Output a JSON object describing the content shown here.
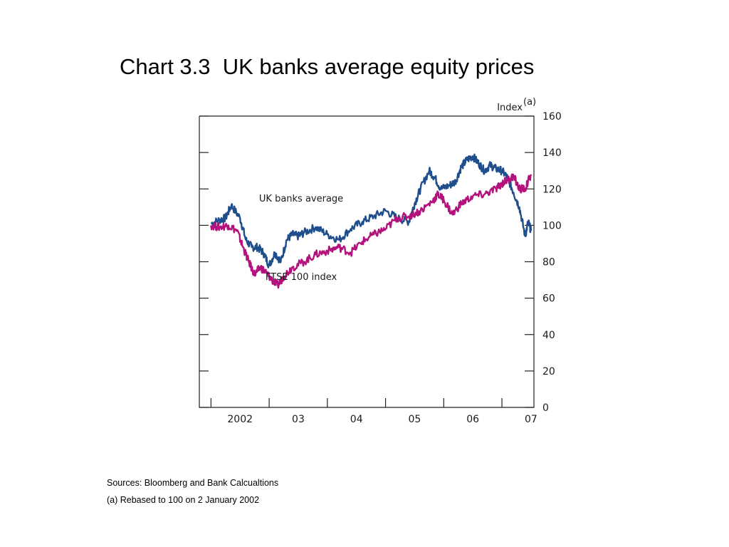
{
  "title": "Chart 3.3  UK banks average equity prices",
  "chart_data": {
    "type": "line",
    "ylabel": "Index",
    "ylabel_superscript": "(a)",
    "ylim": [
      0,
      160
    ],
    "y_ticks": [
      0,
      20,
      40,
      60,
      80,
      100,
      120,
      140,
      160
    ],
    "x_range": [
      2001.8,
      2007.55
    ],
    "x_ticks": [
      {
        "label": "2002",
        "value": 2002
      },
      {
        "label": "03",
        "value": 2003
      },
      {
        "label": "04",
        "value": 2004
      },
      {
        "label": "05",
        "value": 2005
      },
      {
        "label": "06",
        "value": 2006
      },
      {
        "label": "07",
        "value": 2007
      }
    ],
    "series": [
      {
        "name": "UK banks average",
        "color": "#1f4e8c",
        "x": [
          2002.0,
          2002.15,
          2002.25,
          2002.35,
          2002.5,
          2002.6,
          2002.7,
          2002.8,
          2002.9,
          2003.0,
          2003.1,
          2003.2,
          2003.3,
          2003.4,
          2003.5,
          2003.6,
          2003.8,
          2004.0,
          2004.2,
          2004.4,
          2004.6,
          2004.8,
          2005.0,
          2005.2,
          2005.4,
          2005.5,
          2005.6,
          2005.75,
          2005.85,
          2005.95,
          2006.1,
          2006.2,
          2006.3,
          2006.4,
          2006.5,
          2006.6,
          2006.7,
          2006.8,
          2006.9,
          2007.0,
          2007.1,
          2007.2,
          2007.3,
          2007.4,
          2007.45,
          2007.5
        ],
        "values": [
          101,
          103,
          104,
          111,
          104,
          92,
          88,
          88,
          85,
          78,
          85,
          80,
          92,
          95,
          94,
          96,
          99,
          95,
          92,
          98,
          102,
          105,
          108,
          104,
          102,
          112,
          120,
          130,
          126,
          120,
          122,
          124,
          132,
          136,
          138,
          134,
          130,
          133,
          131,
          130,
          126,
          118,
          110,
          94,
          102,
          97
        ],
        "label_value": 113,
        "label_year": 2003.55
      },
      {
        "name": "FTSE 100 index",
        "color": "#b3117c",
        "x": [
          2002.0,
          2002.15,
          2002.3,
          2002.45,
          2002.55,
          2002.65,
          2002.75,
          2002.85,
          2002.95,
          2003.05,
          2003.15,
          2003.25,
          2003.4,
          2003.6,
          2003.8,
          2004.0,
          2004.2,
          2004.4,
          2004.6,
          2004.8,
          2005.0,
          2005.2,
          2005.4,
          2005.6,
          2005.8,
          2005.9,
          2006.0,
          2006.15,
          2006.3,
          2006.5,
          2006.7,
          2006.9,
          2007.0,
          2007.1,
          2007.2,
          2007.3,
          2007.4,
          2007.5
        ],
        "values": [
          100,
          99,
          100,
          97,
          88,
          80,
          73,
          77,
          74,
          70,
          67,
          72,
          77,
          80,
          84,
          86,
          88,
          85,
          91,
          95,
          98,
          104,
          105,
          108,
          113,
          117,
          114,
          106,
          112,
          116,
          117,
          120,
          123,
          125,
          127,
          120,
          120,
          128
        ],
        "label_value": 70,
        "label_year": 2003.55
      }
    ]
  },
  "notes": {
    "sources": "Sources: Bloomberg and Bank Calcualtions",
    "footnote": "(a) Rebased to 100 on 2 January 2002"
  }
}
